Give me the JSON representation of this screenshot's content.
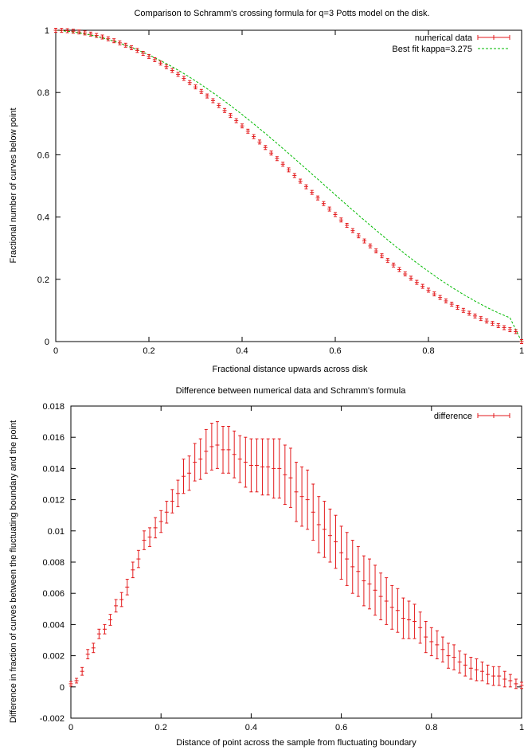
{
  "chart_data": [
    {
      "type": "line",
      "title": "Comparison to Schramm's crossing formula for q=3 Potts model on the disk.",
      "xlabel": "Fractional distance upwards across disk",
      "ylabel": "Fractional number of curves below point",
      "xlim": [
        0,
        1
      ],
      "ylim": [
        0,
        1
      ],
      "xticks": [
        "0",
        "0.2",
        "0.4",
        "0.6",
        "0.8",
        "1"
      ],
      "yticks": [
        "0",
        "0.2",
        "0.4",
        "0.6",
        "0.8",
        "1"
      ],
      "legend_position": "top-right",
      "series": [
        {
          "name": "numerical data",
          "style": "points with error bars",
          "color": "#e31a1c",
          "x": [
            0.0,
            0.0125,
            0.025,
            0.0375,
            0.05,
            0.0625,
            0.075,
            0.0875,
            0.1,
            0.1125,
            0.125,
            0.1375,
            0.15,
            0.1625,
            0.175,
            0.1875,
            0.2,
            0.2125,
            0.225,
            0.2375,
            0.25,
            0.2625,
            0.275,
            0.2875,
            0.3,
            0.3125,
            0.325,
            0.3375,
            0.35,
            0.3625,
            0.375,
            0.3875,
            0.4,
            0.4125,
            0.425,
            0.4375,
            0.45,
            0.4625,
            0.475,
            0.4875,
            0.5,
            0.5125,
            0.525,
            0.5375,
            0.55,
            0.5625,
            0.575,
            0.5875,
            0.6,
            0.6125,
            0.625,
            0.6375,
            0.65,
            0.6625,
            0.675,
            0.6875,
            0.7,
            0.7125,
            0.725,
            0.7375,
            0.75,
            0.7625,
            0.775,
            0.7875,
            0.8,
            0.8125,
            0.825,
            0.8375,
            0.85,
            0.8625,
            0.875,
            0.8875,
            0.9,
            0.9125,
            0.925,
            0.9375,
            0.95,
            0.9625,
            0.975,
            0.9875,
            1.0
          ],
          "y": [
            1.0,
            0.9996,
            0.9986,
            0.9969,
            0.9945,
            0.9914,
            0.9877,
            0.9833,
            0.9783,
            0.9726,
            0.9663,
            0.9595,
            0.9519,
            0.9438,
            0.9351,
            0.9258,
            0.9159,
            0.9055,
            0.8945,
            0.883,
            0.8709,
            0.8584,
            0.8454,
            0.8319,
            0.818,
            0.8036,
            0.7888,
            0.7737,
            0.7581,
            0.7422,
            0.726,
            0.7095,
            0.6927,
            0.6757,
            0.6584,
            0.641,
            0.6233,
            0.6055,
            0.5876,
            0.5696,
            0.5515,
            0.5334,
            0.5153,
            0.4972,
            0.4792,
            0.4612,
            0.4433,
            0.4256,
            0.408,
            0.3906,
            0.3734,
            0.3564,
            0.3397,
            0.3232,
            0.3071,
            0.2912,
            0.2757,
            0.2605,
            0.2457,
            0.2313,
            0.2172,
            0.2036,
            0.1903,
            0.1775,
            0.1651,
            0.1531,
            0.1416,
            0.1306,
            0.12,
            0.1099,
            0.1002,
            0.091,
            0.0822,
            0.0738,
            0.0659,
            0.0584,
            0.0513,
            0.0446,
            0.0382,
            0.0321,
            0.0
          ]
        },
        {
          "name": "Best fit kappa=3.275",
          "style": "dashed line",
          "color": "#00bb00",
          "x": [
            0.0,
            0.025,
            0.05,
            0.075,
            0.1,
            0.125,
            0.15,
            0.175,
            0.2,
            0.225,
            0.25,
            0.275,
            0.3,
            0.325,
            0.35,
            0.375,
            0.4,
            0.425,
            0.45,
            0.475,
            0.5,
            0.525,
            0.55,
            0.575,
            0.6,
            0.625,
            0.65,
            0.675,
            0.7,
            0.725,
            0.75,
            0.775,
            0.8,
            0.825,
            0.85,
            0.875,
            0.9,
            0.925,
            0.95,
            0.975,
            1.0
          ],
          "y": [
            1.0,
            0.9969,
            0.9917,
            0.9846,
            0.9756,
            0.9647,
            0.952,
            0.9374,
            0.9209,
            0.9026,
            0.8826,
            0.8608,
            0.8374,
            0.8124,
            0.786,
            0.7583,
            0.7294,
            0.6993,
            0.6684,
            0.6366,
            0.6042,
            0.5713,
            0.5381,
            0.5048,
            0.4715,
            0.4384,
            0.4056,
            0.3734,
            0.3419,
            0.3112,
            0.2814,
            0.2527,
            0.2252,
            0.1991,
            0.1744,
            0.1513,
            0.1298,
            0.1101,
            0.0921,
            0.0761,
            0.0
          ]
        }
      ]
    },
    {
      "type": "scatter",
      "title": "Difference between numerical data and Schramm's formula",
      "xlabel": "Distance of point across the sample from fluctuating boundary",
      "ylabel": "Difference in fraction of curves between the fluctuating boundary and the point",
      "xlim": [
        0,
        1
      ],
      "ylim": [
        -0.002,
        0.018
      ],
      "xticks": [
        "0",
        "0.2",
        "0.4",
        "0.6",
        "0.8",
        "1"
      ],
      "yticks": [
        "-0.002",
        "0",
        "0.002",
        "0.004",
        "0.006",
        "0.008",
        "0.01",
        "0.012",
        "0.014",
        "0.016",
        "0.018"
      ],
      "legend_position": "top-right",
      "series": [
        {
          "name": "difference",
          "style": "points with error bars",
          "color": "#e31a1c",
          "x": [
            0.0,
            0.0125,
            0.025,
            0.0375,
            0.05,
            0.0625,
            0.075,
            0.0875,
            0.1,
            0.1125,
            0.125,
            0.1375,
            0.15,
            0.1625,
            0.175,
            0.1875,
            0.2,
            0.2125,
            0.225,
            0.2375,
            0.25,
            0.2625,
            0.275,
            0.2875,
            0.3,
            0.3125,
            0.325,
            0.3375,
            0.35,
            0.3625,
            0.375,
            0.3875,
            0.4,
            0.4125,
            0.425,
            0.4375,
            0.45,
            0.4625,
            0.475,
            0.4875,
            0.5,
            0.5125,
            0.525,
            0.5375,
            0.55,
            0.5625,
            0.575,
            0.5875,
            0.6,
            0.6125,
            0.625,
            0.6375,
            0.65,
            0.6625,
            0.675,
            0.6875,
            0.7,
            0.7125,
            0.725,
            0.7375,
            0.75,
            0.7625,
            0.775,
            0.7875,
            0.8,
            0.8125,
            0.825,
            0.8375,
            0.85,
            0.8625,
            0.875,
            0.8875,
            0.9,
            0.9125,
            0.925,
            0.9375,
            0.95,
            0.9625,
            0.975,
            0.9875,
            1.0
          ],
          "y": [
            0.0002,
            0.0004,
            0.001,
            0.0021,
            0.0025,
            0.0034,
            0.0037,
            0.0043,
            0.0052,
            0.0056,
            0.0064,
            0.0075,
            0.0082,
            0.0094,
            0.0096,
            0.0102,
            0.0106,
            0.0112,
            0.0119,
            0.0124,
            0.0135,
            0.0137,
            0.0144,
            0.0146,
            0.0151,
            0.0154,
            0.0155,
            0.0152,
            0.0152,
            0.0149,
            0.0146,
            0.0144,
            0.0142,
            0.0142,
            0.0141,
            0.0141,
            0.014,
            0.014,
            0.0136,
            0.0134,
            0.0125,
            0.0122,
            0.012,
            0.0112,
            0.0104,
            0.0101,
            0.0097,
            0.0093,
            0.0086,
            0.0082,
            0.0077,
            0.0074,
            0.0068,
            0.0066,
            0.0062,
            0.0058,
            0.0055,
            0.0051,
            0.0049,
            0.0044,
            0.0043,
            0.0042,
            0.0038,
            0.0032,
            0.0029,
            0.0027,
            0.0024,
            0.002,
            0.0019,
            0.0016,
            0.0014,
            0.0012,
            0.0011,
            0.001,
            0.0008,
            0.0007,
            0.0007,
            0.0005,
            0.0004,
            0.0002,
            0.0001
          ],
          "err": [
            0.00015,
            0.00015,
            0.00025,
            0.0003,
            0.0003,
            0.0003,
            0.0003,
            0.00035,
            0.0004,
            0.00045,
            0.0005,
            0.0005,
            0.00055,
            0.0006,
            0.0006,
            0.00065,
            0.0007,
            0.0007,
            0.00075,
            0.00085,
            0.0011,
            0.0011,
            0.0012,
            0.0013,
            0.0014,
            0.0015,
            0.0015,
            0.0015,
            0.0015,
            0.0015,
            0.0015,
            0.0016,
            0.0017,
            0.0017,
            0.0018,
            0.0018,
            0.0019,
            0.0019,
            0.0019,
            0.0019,
            0.0019,
            0.0019,
            0.0019,
            0.0018,
            0.0018,
            0.0018,
            0.0017,
            0.0017,
            0.0017,
            0.0017,
            0.0017,
            0.0016,
            0.0016,
            0.0016,
            0.0016,
            0.0015,
            0.0015,
            0.0014,
            0.0014,
            0.0013,
            0.0012,
            0.0011,
            0.001,
            0.001,
            0.0009,
            0.0009,
            0.0008,
            0.0008,
            0.0008,
            0.0007,
            0.0007,
            0.0007,
            0.0007,
            0.0006,
            0.0006,
            0.0006,
            0.0006,
            0.0005,
            0.0004,
            0.0003,
            0.0002
          ]
        }
      ]
    }
  ]
}
